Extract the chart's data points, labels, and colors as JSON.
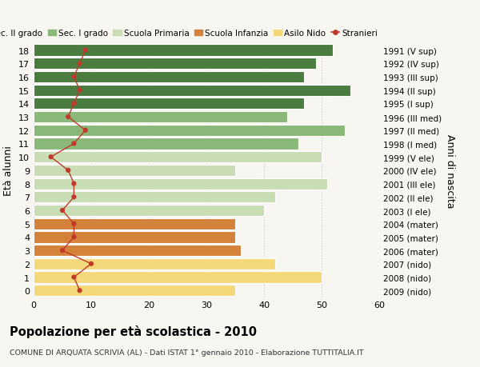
{
  "ages": [
    18,
    17,
    16,
    15,
    14,
    13,
    12,
    11,
    10,
    9,
    8,
    7,
    6,
    5,
    4,
    3,
    2,
    1,
    0
  ],
  "right_labels": [
    "1991 (V sup)",
    "1992 (IV sup)",
    "1993 (III sup)",
    "1994 (II sup)",
    "1995 (I sup)",
    "1996 (III med)",
    "1997 (II med)",
    "1998 (I med)",
    "1999 (V ele)",
    "2000 (IV ele)",
    "2001 (III ele)",
    "2002 (II ele)",
    "2003 (I ele)",
    "2004 (mater)",
    "2005 (mater)",
    "2006 (mater)",
    "2007 (nido)",
    "2008 (nido)",
    "2009 (nido)"
  ],
  "bar_values": [
    52,
    49,
    47,
    55,
    47,
    44,
    54,
    46,
    50,
    35,
    51,
    42,
    40,
    35,
    35,
    36,
    42,
    50,
    35
  ],
  "bar_colors": [
    "#4a7c3f",
    "#4a7c3f",
    "#4a7c3f",
    "#4a7c3f",
    "#4a7c3f",
    "#8ab878",
    "#8ab878",
    "#8ab878",
    "#c8ddb4",
    "#c8ddb4",
    "#c8ddb4",
    "#c8ddb4",
    "#c8ddb4",
    "#d4813a",
    "#d4813a",
    "#d4813a",
    "#f5d87a",
    "#f5d87a",
    "#f5d87a"
  ],
  "stranieri_values": [
    9,
    8,
    7,
    8,
    7,
    6,
    9,
    7,
    3,
    6,
    7,
    7,
    5,
    7,
    7,
    5,
    10,
    7,
    8
  ],
  "title": "Popolazione per età scolastica - 2010",
  "subtitle": "COMUNE DI ARQUATA SCRIVIA (AL) - Dati ISTAT 1° gennaio 2010 - Elaborazione TUTTITALIA.IT",
  "ylabel": "Età alunni",
  "ylabel_right": "Anni di nascita",
  "xlim": [
    0,
    60
  ],
  "legend_labels": [
    "Sec. II grado",
    "Sec. I grado",
    "Scuola Primaria",
    "Scuola Infanzia",
    "Asilo Nido",
    "Stranieri"
  ],
  "legend_colors": [
    "#4a7c3f",
    "#8ab878",
    "#c8ddb4",
    "#d4813a",
    "#f5d87a",
    "#c0392b"
  ],
  "stranieri_color": "#c0392b",
  "bg_color": "#f7f6f0",
  "bar_height": 0.85,
  "grid_color": "#cccccc"
}
